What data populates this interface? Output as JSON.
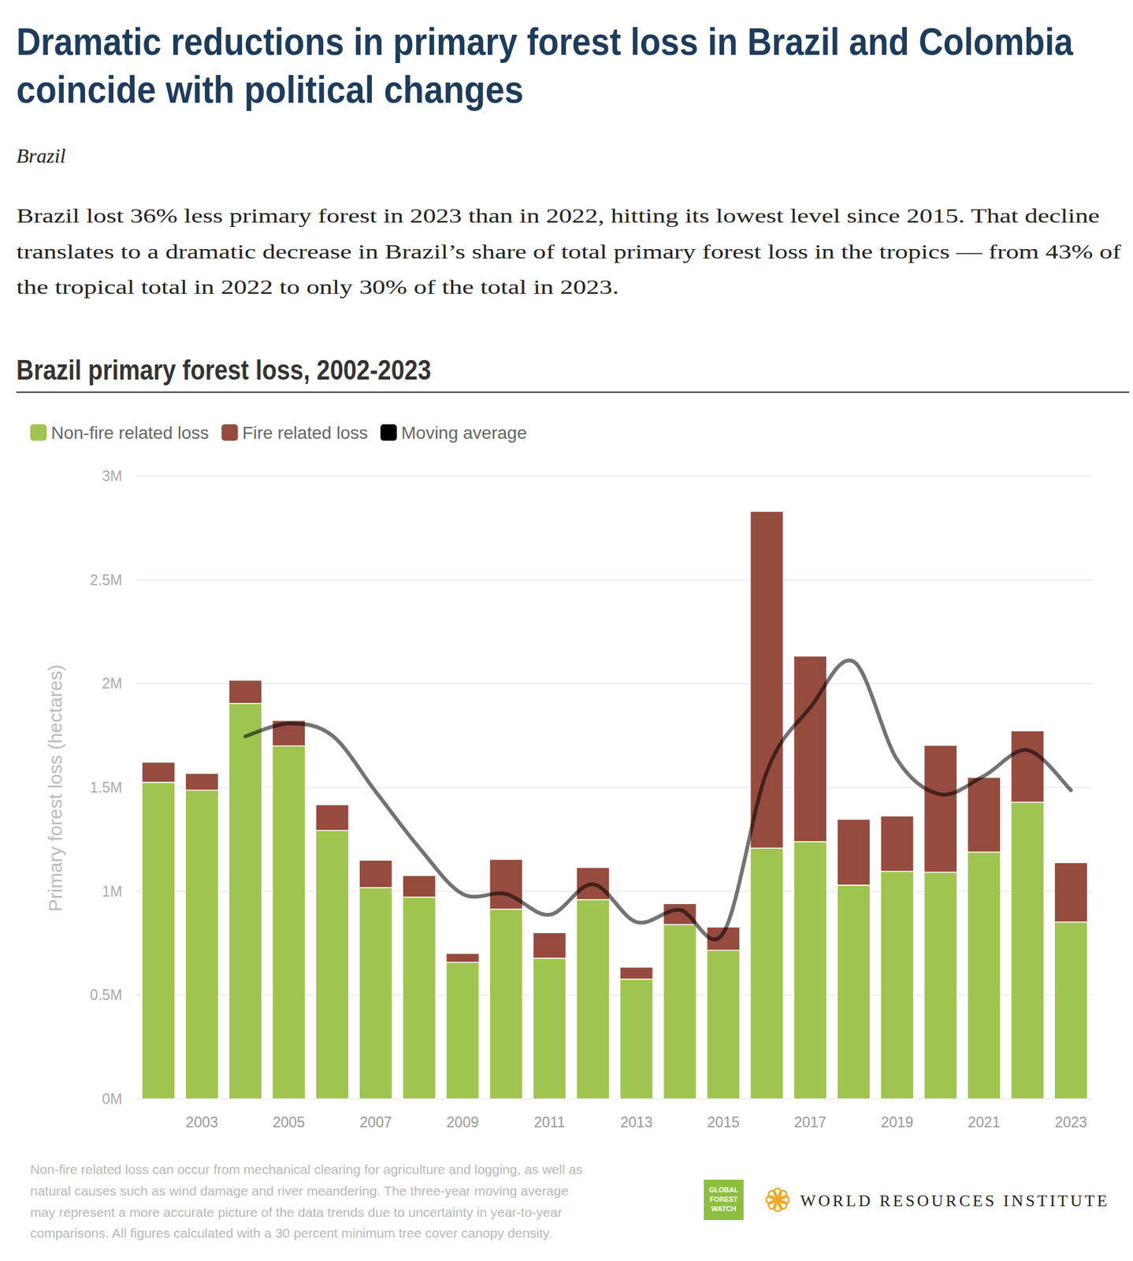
{
  "chart_data": {
    "type": "bar",
    "stacked": true,
    "title": [
      "Dramatic reductions in primary forest loss in Brazil and Colombia",
      "coincide with political changes"
    ],
    "subtitle": "Brazil",
    "description": [
      "Brazil lost 36% less primary forest in 2023 than in 2022, hitting its lowest level since 2015. That decline",
      "translates to a dramatic decrease in Brazil’s share of total primary forest loss in the tropics — from 43% of",
      "the tropical total in 2022 to only 30% of the total in 2023."
    ],
    "chart_title": "Brazil primary forest loss, 2002-2023",
    "y_label": "Primary forest loss (hectares)",
    "note": [
      "Non-fire related loss can occur from mechanical clearing for agriculture and logging, as well as",
      "natural causes such as wind damage and river meandering. The three-year moving average",
      "may represent a more accurate picture of the data trends due to uncertainty in year-to-year",
      "comparisons. All figures calculated with a 30 percent minimum tree cover canopy density."
    ],
    "logo": [
      "GLOBAL",
      "FOREST",
      "WATCH"
    ],
    "source": "WORLD RESOURCES INSTITUTE",
    "categories": [
      null,
      "2003",
      null,
      "2005",
      null,
      "2007",
      null,
      "2009",
      null,
      "2011",
      null,
      "2013",
      null,
      "2015",
      null,
      "2017",
      null,
      "2019",
      null,
      "2021",
      null,
      "2023"
    ],
    "series": [
      {
        "name": "Non-fire related loss",
        "color": "#a0c450",
        "values": [
          1525000,
          1487000,
          1905000,
          1700000,
          1293000,
          1018000,
          972000,
          658000,
          914000,
          678000,
          960000,
          577000,
          840000,
          716000,
          1208000,
          1239000,
          1030000,
          1096000,
          1092000,
          1189000,
          1429000,
          852000
        ]
      },
      {
        "name": "Fire related loss",
        "color": "#964b3f",
        "values": [
          97000,
          81000,
          112000,
          123000,
          124000,
          132000,
          104000,
          43000,
          240000,
          123000,
          155000,
          58000,
          101000,
          112000,
          1622000,
          894000,
          317000,
          267000,
          611000,
          360000,
          344000,
          286000
        ]
      },
      {
        "name": "Moving average",
        "color": "#000000",
        "type": "line",
        "values": [
          null,
          null,
          1746000,
          1808000,
          1750000,
          1480000,
          1210000,
          987000,
          987000,
          887000,
          1034000,
          852000,
          910000,
          800000,
          1576000,
          1885000,
          2106000,
          1634000,
          1467000,
          1556000,
          1680000,
          1487000
        ]
      }
    ],
    "ylim": [
      0,
      3000000
    ],
    "yticks": [
      {
        "value": 0,
        "label": "0M"
      },
      {
        "value": 500000,
        "label": "0.5M"
      },
      {
        "value": 1000000,
        "label": "1M"
      },
      {
        "value": 1500000,
        "label": "1.5M"
      },
      {
        "value": 2000000,
        "label": "2M"
      },
      {
        "value": 2500000,
        "label": "2.5M"
      },
      {
        "value": 3000000,
        "label": "3M"
      }
    ],
    "grid": true,
    "legend": "top-left"
  }
}
